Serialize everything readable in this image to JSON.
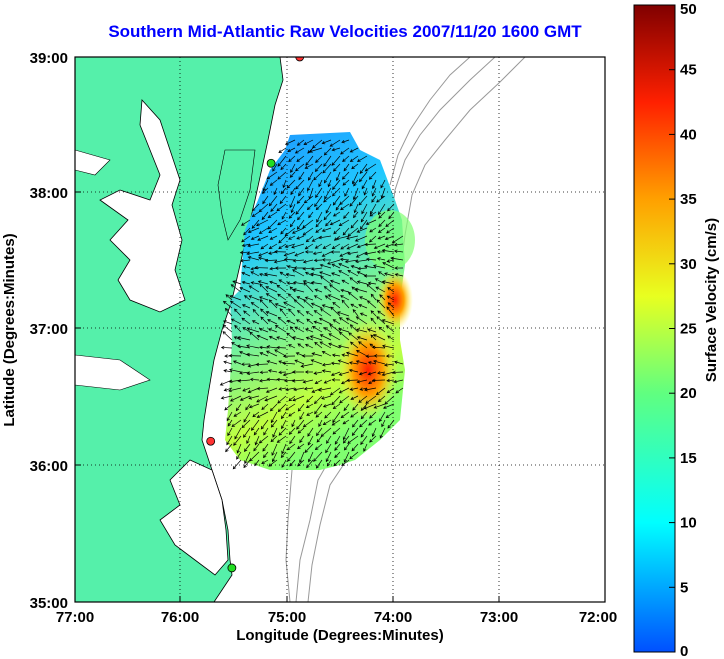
{
  "title": "Southern Mid-Atlantic Raw Velocities 2007/11/20 1600 GMT",
  "xaxis": {
    "label": "Longitude (Degrees:Minutes)",
    "ticks": [
      "77:00",
      "76:00",
      "75:00",
      "74:00",
      "73:00",
      "72:00"
    ]
  },
  "yaxis": {
    "label": "Latitude (Degrees:Minutes)",
    "ticks": [
      "39:00",
      "38:00",
      "37:00",
      "36:00",
      "35:00"
    ]
  },
  "colorbar": {
    "label": "Surface Velocity (cm/s)",
    "ticks": [
      "50",
      "45",
      "40",
      "35",
      "30",
      "25",
      "20",
      "15",
      "10",
      "5",
      "0"
    ],
    "range": [
      0,
      50
    ]
  },
  "map_extent": {
    "lon": [
      -77,
      -72
    ],
    "lat": [
      35,
      39
    ]
  },
  "colors": {
    "land": "#55f0aa",
    "title": "#0000ff",
    "station": "#ff3333",
    "station_alt": "#22dd22"
  },
  "stations": [
    {
      "name": "station-marker",
      "lon": -74.88,
      "lat": 39.0,
      "color": "red"
    },
    {
      "name": "station-marker",
      "lon": -75.15,
      "lat": 38.22,
      "color": "green"
    },
    {
      "name": "station-marker",
      "lon": -75.72,
      "lat": 36.18,
      "color": "red"
    },
    {
      "name": "station-marker",
      "lon": -75.52,
      "lat": 35.25,
      "color": "green"
    }
  ]
}
